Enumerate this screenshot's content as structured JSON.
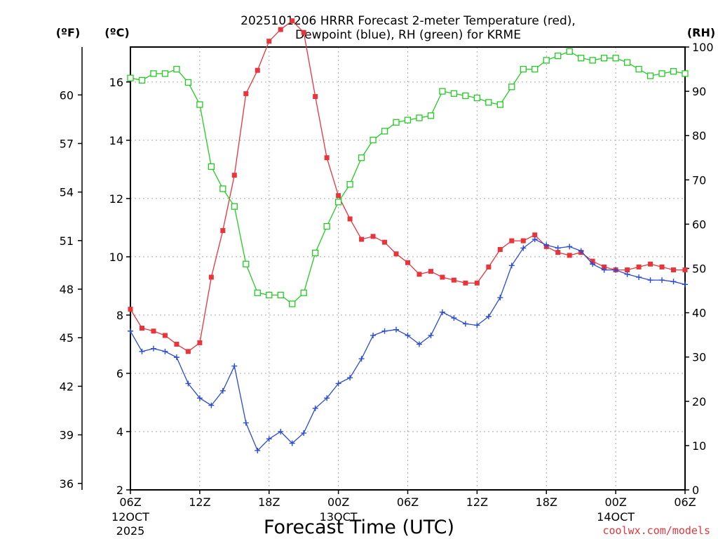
{
  "title": {
    "line1": "2025101206 HRRR Forecast 2-meter Temperature (red),",
    "line2": "Dewpoint (blue), RH (green) for KRME"
  },
  "labels": {
    "fahrenheit_unit": "(ºF)",
    "celsius_unit": "(ºC)",
    "rh_unit": "(RH)",
    "xlabel": "Forecast Time (UTC)",
    "watermark": "coolwx.com/models"
  },
  "axes": {
    "x_ticks": [
      {
        "hour": 0,
        "label": "06Z",
        "sub1": "12OCT",
        "sub2": "2025"
      },
      {
        "hour": 6,
        "label": "12Z",
        "sub1": "",
        "sub2": ""
      },
      {
        "hour": 12,
        "label": "18Z",
        "sub1": "",
        "sub2": ""
      },
      {
        "hour": 18,
        "label": "00Z",
        "sub1": "13OCT",
        "sub2": ""
      },
      {
        "hour": 24,
        "label": "06Z",
        "sub1": "",
        "sub2": ""
      },
      {
        "hour": 30,
        "label": "12Z",
        "sub1": "",
        "sub2": ""
      },
      {
        "hour": 36,
        "label": "18Z",
        "sub1": "",
        "sub2": ""
      },
      {
        "hour": 42,
        "label": "00Z",
        "sub1": "14OCT",
        "sub2": ""
      },
      {
        "hour": 48,
        "label": "06Z",
        "sub1": "",
        "sub2": ""
      }
    ],
    "celsius_ticks": [
      2,
      4,
      6,
      8,
      10,
      12,
      14,
      16
    ],
    "fahrenheit_ticks": [
      36,
      39,
      42,
      45,
      48,
      51,
      54,
      57,
      60
    ],
    "rh_ticks": [
      0,
      10,
      20,
      30,
      40,
      50,
      60,
      70,
      80,
      90,
      100
    ]
  },
  "chart_data": {
    "type": "line",
    "title": "2025101206 HRRR Forecast 2-meter Temperature (red), Dewpoint (blue), RH (green) for KRME",
    "xlabel": "Forecast Time (UTC)",
    "xlim": [
      0,
      48
    ],
    "x_unit": "forecast hour from 2025-10-12 06Z",
    "y_left": {
      "label": "(ºC)",
      "lim": [
        2,
        17.2
      ]
    },
    "y_left_outer": {
      "label": "(ºF)"
    },
    "y_right": {
      "label": "(RH)",
      "lim": [
        0,
        100
      ]
    },
    "grid": true,
    "x": [
      0,
      1,
      2,
      3,
      4,
      5,
      6,
      7,
      8,
      9,
      10,
      11,
      12,
      13,
      14,
      15,
      16,
      17,
      18,
      19,
      20,
      21,
      22,
      23,
      24,
      25,
      26,
      27,
      28,
      29,
      30,
      31,
      32,
      33,
      34,
      35,
      36,
      37,
      38,
      39,
      40,
      41,
      42,
      43,
      44,
      45,
      46,
      47,
      48
    ],
    "series": [
      {
        "axis": "celsius",
        "color": "#e8343a",
        "marker": "filled-square",
        "values": [
          8.2,
          7.55,
          7.45,
          7.3,
          7.0,
          6.75,
          7.05,
          9.3,
          10.9,
          12.8,
          15.6,
          16.4,
          17.4,
          17.8,
          18.1,
          17.7,
          15.5,
          13.4,
          12.1,
          11.3,
          10.6,
          10.7,
          10.5,
          10.1,
          9.8,
          9.4,
          9.5,
          9.3,
          9.2,
          9.1,
          9.1,
          9.65,
          10.25,
          10.55,
          10.55,
          10.75,
          10.35,
          10.15,
          10.05,
          10.15,
          9.85,
          9.65,
          9.55,
          9.55,
          9.65,
          9.75,
          9.65,
          9.55,
          9.55
        ]
      },
      {
        "axis": "celsius",
        "color": "#2a4bd6",
        "marker": "plus",
        "values": [
          7.45,
          6.75,
          6.85,
          6.75,
          6.55,
          5.65,
          5.15,
          4.9,
          5.4,
          6.25,
          4.3,
          3.35,
          3.75,
          4.0,
          3.6,
          3.95,
          4.8,
          5.15,
          5.65,
          5.85,
          6.5,
          7.3,
          7.45,
          7.5,
          7.3,
          7.0,
          7.3,
          8.1,
          7.9,
          7.7,
          7.65,
          7.95,
          8.6,
          9.7,
          10.3,
          10.6,
          10.4,
          10.3,
          10.35,
          10.2,
          9.75,
          9.55,
          9.55,
          9.4,
          9.3,
          9.2,
          9.2,
          9.15,
          9.05
        ]
      },
      {
        "axis": "rh",
        "color": "#22cc22",
        "marker": "open-square",
        "values": [
          93,
          92.5,
          94,
          94,
          95,
          92,
          87,
          73,
          68,
          64,
          51,
          44.5,
          44,
          44,
          42,
          44.5,
          53.5,
          59.5,
          65,
          69,
          75,
          79,
          81,
          83,
          83.5,
          84,
          84.5,
          90,
          89.5,
          89,
          88.5,
          87.5,
          87,
          91,
          95,
          95,
          97,
          98,
          99,
          97.5,
          97,
          97.5,
          97.5,
          96.5,
          95,
          93.5,
          94,
          94.5,
          94
        ]
      }
    ]
  }
}
